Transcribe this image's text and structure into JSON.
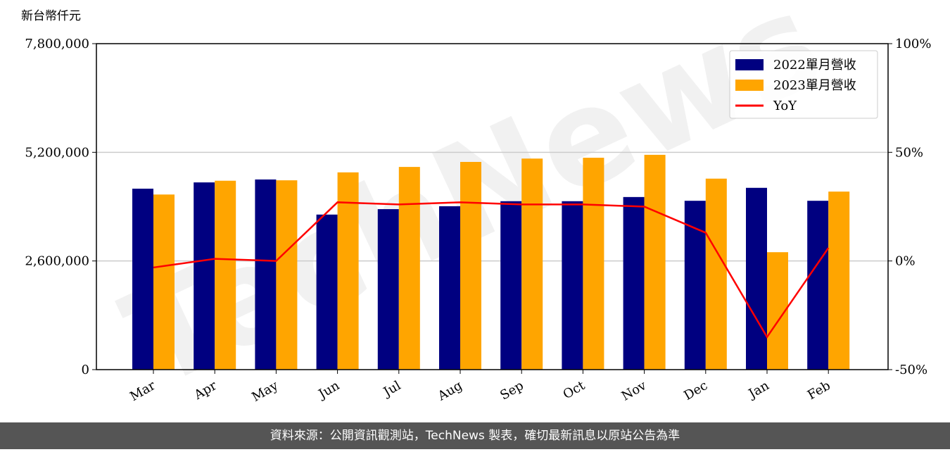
{
  "chart_data": {
    "type": "bar-line",
    "y_label": "新台幣仟元",
    "watermark": "TechNews",
    "source": "資料來源：公開資訊觀測站，TechNews 製表，確切最新訊息以原站公告為準",
    "categories": [
      "Mar",
      "Apr",
      "May",
      "Jun",
      "Jul",
      "Aug",
      "Sep",
      "Oct",
      "Nov",
      "Dec",
      "Jan",
      "Feb"
    ],
    "series": [
      {
        "name": "2022單月營收",
        "color": "#000080",
        "kind": "bar",
        "values": [
          4330000,
          4480000,
          4550000,
          3710000,
          3840000,
          3910000,
          4030000,
          4030000,
          4130000,
          4040000,
          4350000,
          4040000
        ]
      },
      {
        "name": "2023單月營收",
        "color": "#ffa500",
        "kind": "bar",
        "values": [
          4190000,
          4520000,
          4530000,
          4720000,
          4850000,
          4970000,
          5050000,
          5070000,
          5140000,
          4570000,
          2810000,
          4260000
        ]
      },
      {
        "name": "YoY",
        "color": "#ff0000",
        "kind": "line",
        "axis": "y2",
        "values": [
          -3,
          1,
          0,
          27,
          26,
          27,
          26,
          26,
          25,
          13,
          -35,
          6
        ]
      }
    ],
    "ylim": [
      0,
      7800000
    ],
    "yticks": [
      0,
      {
        "value": 2600000,
        "label": "2,600,000"
      },
      {
        "value": 5200000,
        "label": "5,200,000"
      },
      {
        "value": 7800000,
        "label": "7,800,000"
      }
    ],
    "y2lim": [
      -50,
      100
    ],
    "y2ticks": [
      {
        "value": -50,
        "label": "-50%"
      },
      {
        "value": 0,
        "label": "0%"
      },
      {
        "value": 50,
        "label": "50%"
      },
      {
        "value": 100,
        "label": "100%"
      }
    ],
    "grid": true,
    "legend": "upper right"
  }
}
